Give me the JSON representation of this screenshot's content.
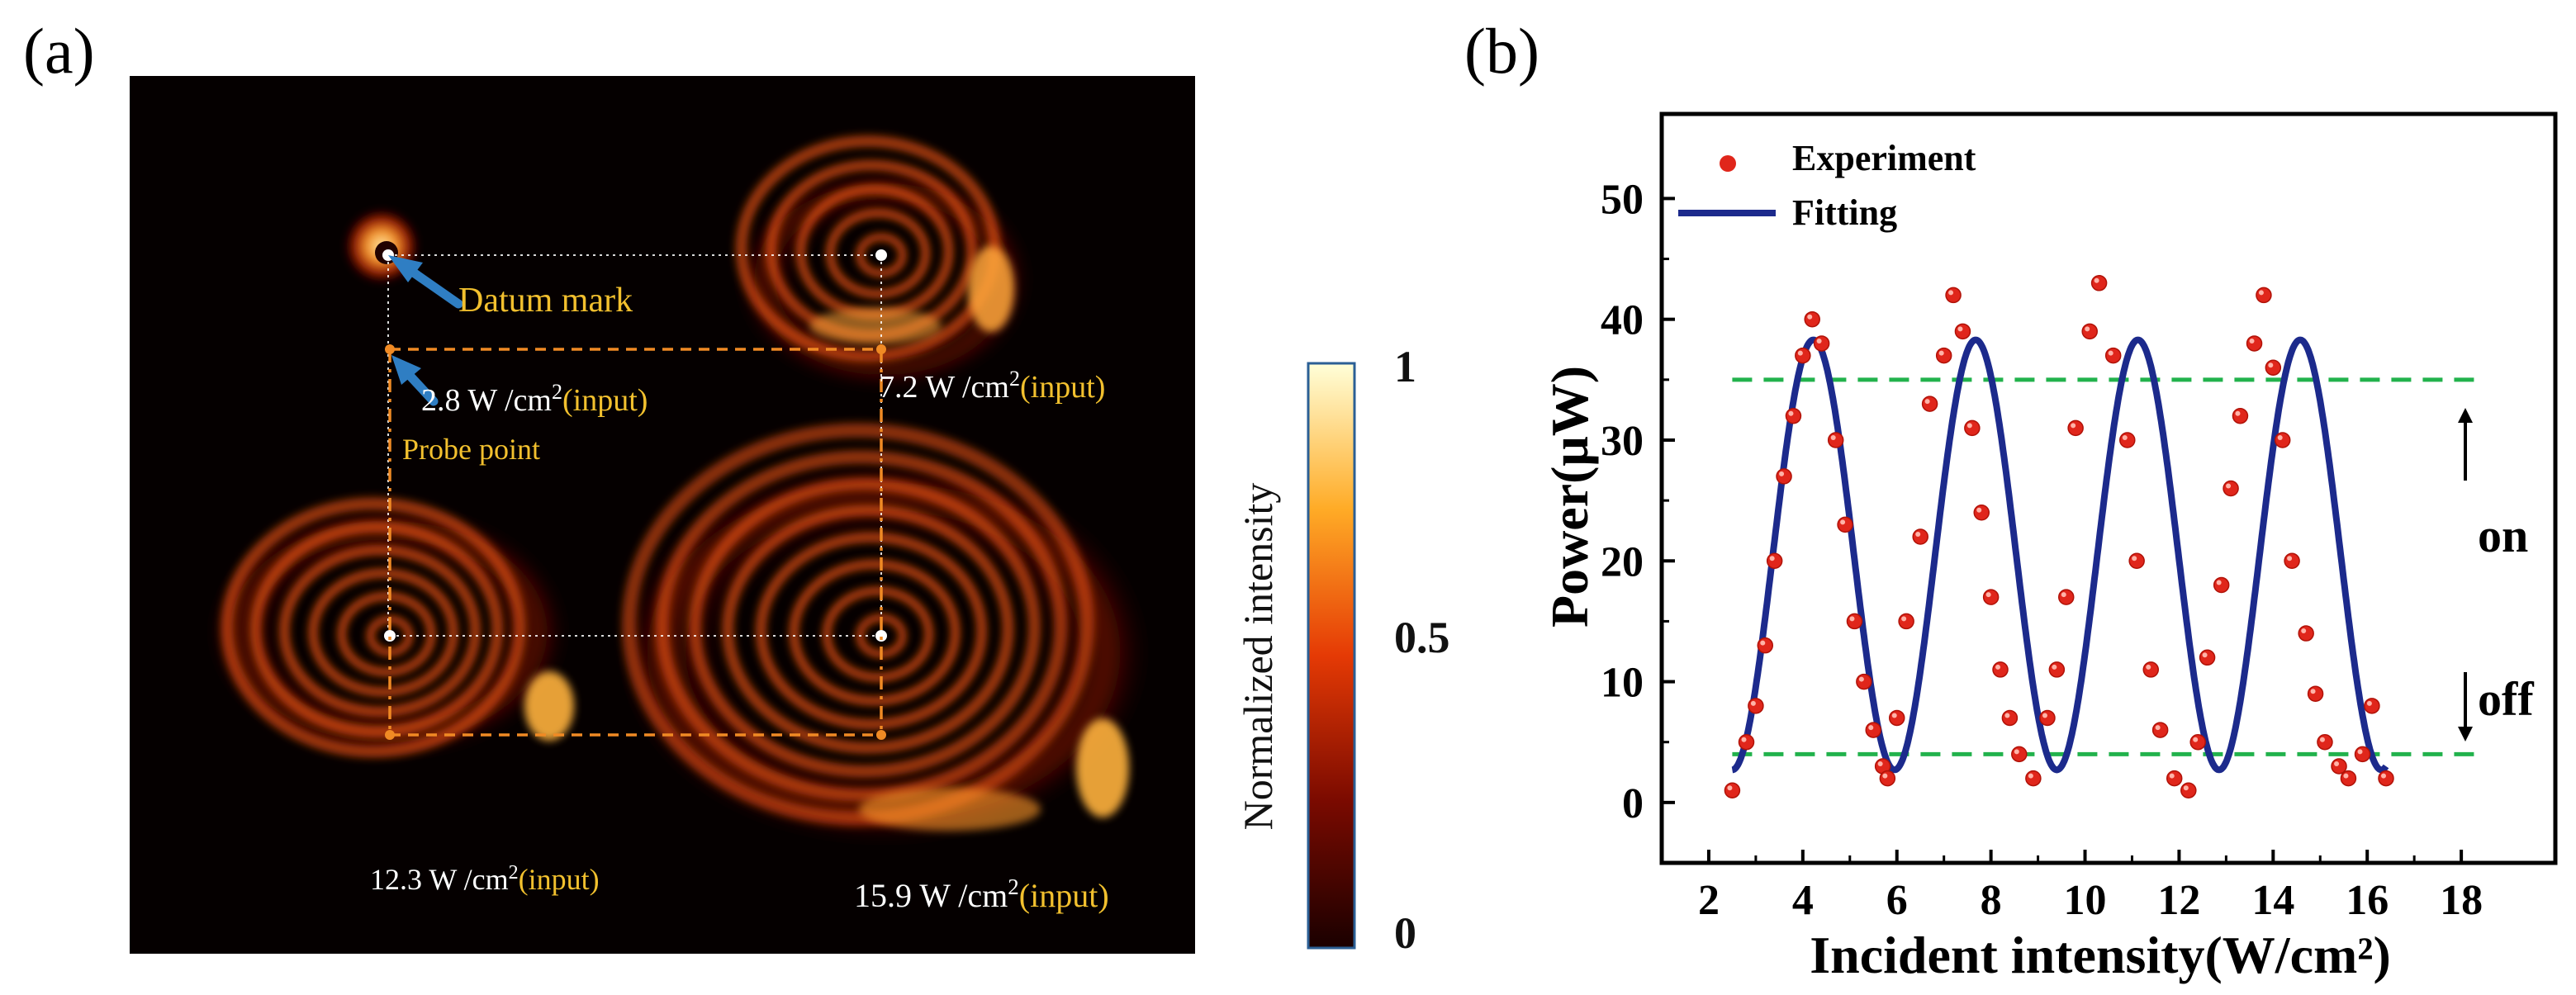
{
  "panel_a": {
    "label": "(a)",
    "datum_mark": "Datum mark",
    "probe_point": "Probe point",
    "captions": [
      {
        "value": "2.8 W /cm",
        "sup": "2",
        "suffix": "(input)"
      },
      {
        "value": "7.2 W /cm",
        "sup": "2",
        "suffix": "(input)"
      },
      {
        "value": "12.3 W /cm",
        "sup": "2",
        "suffix": "(input)"
      },
      {
        "value": "15.9 W /cm",
        "sup": "2",
        "suffix": "(input)"
      }
    ],
    "colorbar": {
      "label": "Normalized intensity",
      "ticks": [
        "1",
        "0.5",
        "0"
      ]
    }
  },
  "panel_b": {
    "label": "(b)",
    "on_label": "on",
    "off_label": "off"
  },
  "colors": {
    "fit_line": "#1c2a8c",
    "points": "#e0261b",
    "threshold": "#22b24c",
    "caption_value": "#ffffff",
    "caption_suffix": "#f2c02e",
    "annotation_arrow": "#2f7ec3",
    "probe_guide": "#f08a24"
  },
  "chart_data": {
    "type": "scatter",
    "title": "",
    "xlabel": "Incident intensity(W/cm²)",
    "ylabel": "Power(μW)",
    "xlim": [
      1.0,
      20.0
    ],
    "ylim": [
      -5,
      57
    ],
    "xticks": [
      2,
      4,
      6,
      8,
      10,
      12,
      14,
      16,
      18
    ],
    "yticks": [
      0,
      10,
      20,
      30,
      40,
      50
    ],
    "legend": [
      "Experiment",
      "Fitting"
    ],
    "legend_position": "top-left",
    "series": [
      {
        "name": "Experiment",
        "kind": "points",
        "x": [
          2.5,
          2.8,
          3.0,
          3.2,
          3.4,
          3.6,
          3.8,
          4.0,
          4.2,
          4.4,
          4.7,
          4.9,
          5.1,
          5.3,
          5.5,
          5.7,
          5.8,
          6.0,
          6.2,
          6.5,
          6.7,
          7.0,
          7.2,
          7.4,
          7.6,
          7.8,
          8.0,
          8.2,
          8.4,
          8.6,
          8.9,
          9.2,
          9.4,
          9.6,
          9.8,
          10.1,
          10.3,
          10.6,
          10.9,
          11.1,
          11.4,
          11.6,
          11.9,
          12.2,
          12.4,
          12.6,
          12.9,
          13.1,
          13.3,
          13.6,
          13.8,
          14.0,
          14.2,
          14.4,
          14.7,
          14.9,
          15.1,
          15.4,
          15.6,
          15.9,
          16.1,
          16.4
        ],
        "y": [
          1,
          5,
          8,
          13,
          20,
          27,
          32,
          37,
          40,
          38,
          30,
          23,
          15,
          10,
          6,
          3,
          2,
          7,
          15,
          22,
          33,
          37,
          42,
          39,
          31,
          24,
          17,
          11,
          7,
          4,
          2,
          7,
          11,
          17,
          31,
          39,
          43,
          37,
          30,
          20,
          11,
          6,
          2,
          1,
          5,
          12,
          18,
          26,
          32,
          38,
          42,
          36,
          30,
          20,
          14,
          9,
          5,
          3,
          2,
          4,
          8,
          2
        ]
      },
      {
        "name": "Fitting",
        "kind": "line",
        "model": "y = 20.5 - 17.8*cos(2*pi*(x-2.5)/3.45)",
        "x_range": [
          2.5,
          16.4
        ]
      }
    ],
    "threshold_lines": [
      35,
      4
    ]
  }
}
